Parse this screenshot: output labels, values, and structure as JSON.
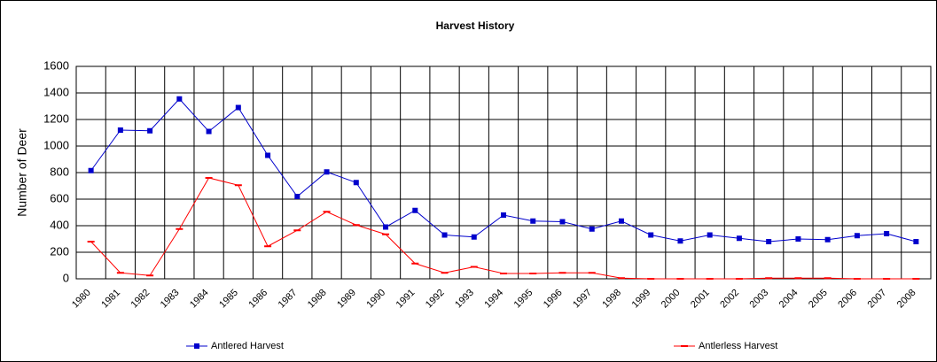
{
  "chart_data": {
    "type": "line",
    "title": "Harvest History",
    "y_label": "Number of Deer",
    "categories": [
      "1980",
      "1981",
      "1982",
      "1983",
      "1984",
      "1985",
      "1986",
      "1987",
      "1988",
      "1989",
      "1990",
      "1991",
      "1992",
      "1993",
      "1994",
      "1995",
      "1996",
      "1997",
      "1998",
      "1999",
      "2000",
      "2001",
      "2002",
      "2003",
      "2004",
      "2005",
      "2006",
      "2007",
      "2008"
    ],
    "series": [
      {
        "name": "Antlered Harvest",
        "color": "#0000cc",
        "marker": "square",
        "values": [
          815,
          1120,
          1115,
          1355,
          1110,
          1290,
          930,
          620,
          805,
          725,
          390,
          515,
          330,
          315,
          480,
          435,
          430,
          375,
          435,
          330,
          285,
          330,
          305,
          280,
          300,
          295,
          325,
          340,
          280
        ]
      },
      {
        "name": "Antlerless Harvest",
        "color": "#ff0000",
        "marker": "dash",
        "values": [
          280,
          45,
          25,
          375,
          760,
          705,
          245,
          365,
          505,
          405,
          335,
          115,
          45,
          90,
          40,
          40,
          45,
          45,
          5,
          0,
          0,
          0,
          0,
          5,
          5,
          5,
          0,
          0,
          0
        ]
      }
    ],
    "ylim": [
      0,
      1600
    ],
    "yticks": [
      0,
      200,
      400,
      600,
      800,
      1000,
      1200,
      1400,
      1600
    ],
    "grid": true,
    "legend": "bottom"
  }
}
